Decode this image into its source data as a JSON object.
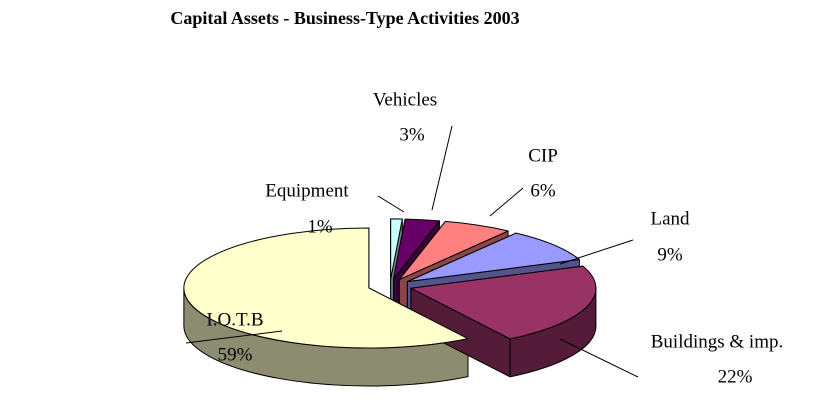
{
  "chart_data": {
    "type": "pie",
    "title": "Capital Assets - Business-Type Activities 2003",
    "categories": [
      "Equipment",
      "Vehicles",
      "CIP",
      "Land",
      "Buildings & imp.",
      "I.O.T.B"
    ],
    "values": [
      1,
      3,
      6,
      9,
      22,
      59
    ],
    "value_labels": [
      "1%",
      "3%",
      "6%",
      "9%",
      "22%",
      "59%"
    ],
    "colors": [
      "#ccffff",
      "#660066",
      "#ff8080",
      "#9999ff",
      "#993366",
      "#ffffcc"
    ]
  }
}
